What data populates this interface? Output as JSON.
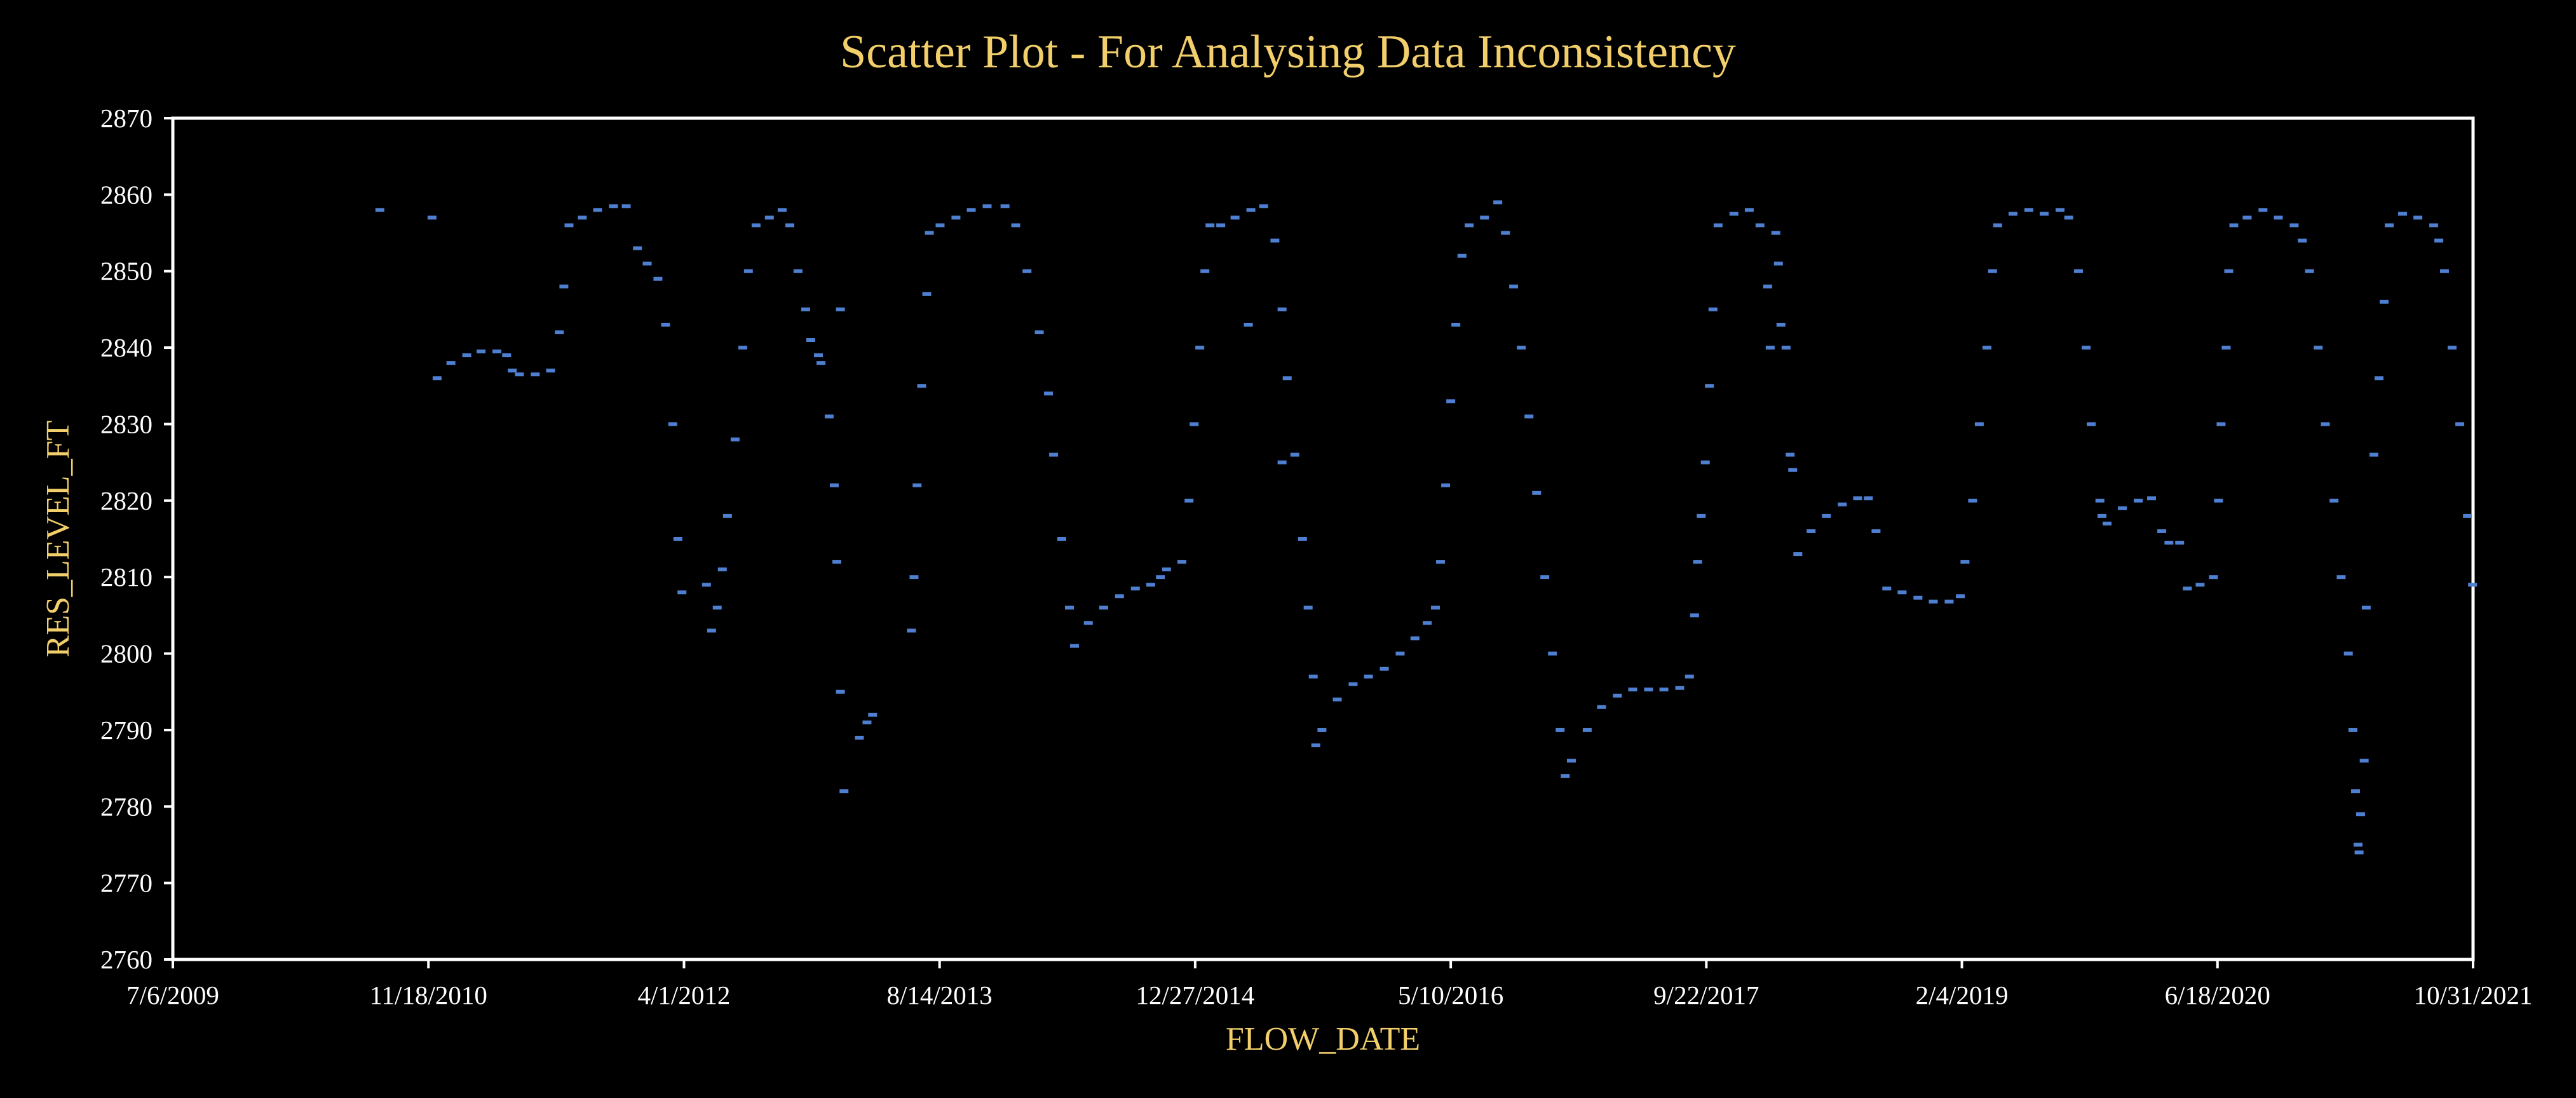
{
  "colors": {
    "background": "#000000",
    "title": "#f2cf6b",
    "axis_label": "#f2cf6b",
    "tick_text": "#ffffff",
    "plot_border": "#ffffff",
    "points": "#4f7fd0"
  },
  "chart_data": {
    "type": "scatter",
    "title": "Scatter Plot - For Analysing Data Inconsistency",
    "xlabel": "FLOW_DATE",
    "ylabel": "RES_LEVEL_FT",
    "xlim": [
      "2009-07-06",
      "2021-10-31"
    ],
    "ylim": [
      2760,
      2870
    ],
    "x_ticks": [
      "7/6/2009",
      "11/18/2010",
      "4/1/2012",
      "8/14/2013",
      "12/27/2014",
      "5/10/2016",
      "9/22/2017",
      "2/4/2019",
      "6/18/2020",
      "10/31/2021"
    ],
    "x_tick_dates": [
      "2009-07-06",
      "2010-11-18",
      "2012-04-01",
      "2013-08-14",
      "2014-12-27",
      "2016-05-10",
      "2017-09-22",
      "2019-02-04",
      "2020-06-18",
      "2021-10-31"
    ],
    "y_ticks": [
      2760,
      2770,
      2780,
      2790,
      2800,
      2810,
      2820,
      2830,
      2840,
      2850,
      2860,
      2870
    ],
    "grid": false,
    "legend": "none",
    "points": [
      [
        "2010-08-15",
        2858
      ],
      [
        "2010-11-25",
        2857
      ],
      [
        "2010-12-05",
        2836
      ],
      [
        "2011-01-01",
        2838
      ],
      [
        "2011-02-01",
        2839
      ],
      [
        "2011-03-01",
        2839.5
      ],
      [
        "2011-04-01",
        2839.5
      ],
      [
        "2011-04-20",
        2839
      ],
      [
        "2011-05-01",
        2837
      ],
      [
        "2011-05-15",
        2836.5
      ],
      [
        "2011-06-15",
        2836.5
      ],
      [
        "2011-07-15",
        2837
      ],
      [
        "2011-08-01",
        2842
      ],
      [
        "2011-08-10",
        2848
      ],
      [
        "2011-08-20",
        2856
      ],
      [
        "2011-09-15",
        2857
      ],
      [
        "2011-10-15",
        2858
      ],
      [
        "2011-11-15",
        2858.5
      ],
      [
        "2011-12-10",
        2858.5
      ],
      [
        "2012-01-01",
        2853
      ],
      [
        "2012-01-20",
        2851
      ],
      [
        "2012-02-10",
        2849
      ],
      [
        "2012-02-25",
        2843
      ],
      [
        "2012-03-10",
        2830
      ],
      [
        "2012-03-20",
        2815
      ],
      [
        "2012-03-28",
        2808
      ],
      [
        "2012-05-15",
        2809
      ],
      [
        "2012-05-25",
        2803
      ],
      [
        "2012-06-05",
        2806
      ],
      [
        "2012-06-15",
        2811
      ],
      [
        "2012-06-25",
        2818
      ],
      [
        "2012-07-10",
        2828
      ],
      [
        "2012-07-25",
        2840
      ],
      [
        "2012-08-05",
        2850
      ],
      [
        "2012-08-20",
        2856
      ],
      [
        "2012-09-15",
        2857
      ],
      [
        "2012-10-10",
        2858
      ],
      [
        "2012-10-25",
        2856
      ],
      [
        "2012-11-10",
        2850
      ],
      [
        "2012-11-25",
        2845
      ],
      [
        "2012-12-05",
        2841
      ],
      [
        "2012-12-20",
        2839
      ],
      [
        "2012-12-25",
        2838
      ],
      [
        "2013-01-10",
        2831
      ],
      [
        "2013-01-20",
        2822
      ],
      [
        "2013-01-25",
        2812
      ],
      [
        "2013-02-01",
        2795
      ],
      [
        "2013-02-08",
        2782
      ],
      [
        "2013-02-01",
        2845
      ],
      [
        "2013-03-10",
        2789
      ],
      [
        "2013-03-25",
        2791
      ],
      [
        "2013-04-05",
        2792
      ],
      [
        "2013-06-20",
        2803
      ],
      [
        "2013-06-25",
        2810
      ],
      [
        "2013-07-01",
        2822
      ],
      [
        "2013-07-10",
        2835
      ],
      [
        "2013-07-20",
        2847
      ],
      [
        "2013-07-25",
        2855
      ],
      [
        "2013-08-15",
        2856
      ],
      [
        "2013-09-15",
        2857
      ],
      [
        "2013-10-15",
        2858
      ],
      [
        "2013-11-15",
        2858.5
      ],
      [
        "2013-12-20",
        2858.5
      ],
      [
        "2014-01-10",
        2856
      ],
      [
        "2014-02-01",
        2850
      ],
      [
        "2014-02-25",
        2842
      ],
      [
        "2014-03-15",
        2834
      ],
      [
        "2014-03-25",
        2826
      ],
      [
        "2014-04-10",
        2815
      ],
      [
        "2014-04-25",
        2806
      ],
      [
        "2014-05-05",
        2801
      ],
      [
        "2014-06-01",
        2804
      ],
      [
        "2014-07-01",
        2806
      ],
      [
        "2014-08-01",
        2807.5
      ],
      [
        "2014-09-01",
        2808.5
      ],
      [
        "2014-10-01",
        2809
      ],
      [
        "2014-10-20",
        2810
      ],
      [
        "2014-11-01",
        2811
      ],
      [
        "2014-12-01",
        2812
      ],
      [
        "2014-12-15",
        2820
      ],
      [
        "2014-12-25",
        2830
      ],
      [
        "2015-01-05",
        2840
      ],
      [
        "2015-01-15",
        2850
      ],
      [
        "2015-01-25",
        2856
      ],
      [
        "2015-02-15",
        2856
      ],
      [
        "2015-03-15",
        2857
      ],
      [
        "2015-04-15",
        2858
      ],
      [
        "2015-05-10",
        2858.5
      ],
      [
        "2015-04-10",
        2843
      ],
      [
        "2015-06-01",
        2854
      ],
      [
        "2015-06-15",
        2845
      ],
      [
        "2015-06-25",
        2836
      ],
      [
        "2015-07-10",
        2826
      ],
      [
        "2015-07-25",
        2815
      ],
      [
        "2015-08-05",
        2806
      ],
      [
        "2015-08-15",
        2797
      ],
      [
        "2015-08-20",
        2788
      ],
      [
        "2015-06-15",
        2825
      ],
      [
        "2015-09-01",
        2790
      ],
      [
        "2015-10-01",
        2794
      ],
      [
        "2015-11-01",
        2796
      ],
      [
        "2015-12-01",
        2797
      ],
      [
        "2016-01-01",
        2798
      ],
      [
        "2016-02-01",
        2800
      ],
      [
        "2016-03-01",
        2802
      ],
      [
        "2016-03-25",
        2804
      ],
      [
        "2016-04-10",
        2806
      ],
      [
        "2016-04-20",
        2812
      ],
      [
        "2016-04-30",
        2822
      ],
      [
        "2016-05-10",
        2833
      ],
      [
        "2016-05-20",
        2843
      ],
      [
        "2016-06-01",
        2852
      ],
      [
        "2016-06-15",
        2856
      ],
      [
        "2016-07-15",
        2857
      ],
      [
        "2016-08-10",
        2859
      ],
      [
        "2016-08-25",
        2855
      ],
      [
        "2016-09-10",
        2848
      ],
      [
        "2016-09-25",
        2840
      ],
      [
        "2016-10-10",
        2831
      ],
      [
        "2016-10-25",
        2821
      ],
      [
        "2016-11-10",
        2810
      ],
      [
        "2016-11-25",
        2800
      ],
      [
        "2016-12-10",
        2790
      ],
      [
        "2016-12-20",
        2784
      ],
      [
        "2017-01-01",
        2786
      ],
      [
        "2017-02-01",
        2790
      ],
      [
        "2017-03-01",
        2793
      ],
      [
        "2017-04-01",
        2794.5
      ],
      [
        "2017-05-01",
        2795.3
      ],
      [
        "2017-06-01",
        2795.3
      ],
      [
        "2017-07-01",
        2795.3
      ],
      [
        "2017-08-01",
        2795.5
      ],
      [
        "2017-08-20",
        2797
      ],
      [
        "2017-08-30",
        2805
      ],
      [
        "2017-09-05",
        2812
      ],
      [
        "2017-09-12",
        2818
      ],
      [
        "2017-09-20",
        2825
      ],
      [
        "2017-09-28",
        2835
      ],
      [
        "2017-10-05",
        2845
      ],
      [
        "2017-10-15",
        2856
      ],
      [
        "2017-11-15",
        2857.5
      ],
      [
        "2017-12-15",
        2858
      ],
      [
        "2018-01-05",
        2856
      ],
      [
        "2018-01-20",
        2848
      ],
      [
        "2018-01-25",
        2840
      ],
      [
        "2018-02-05",
        2855
      ],
      [
        "2018-02-10",
        2851
      ],
      [
        "2018-02-15",
        2843
      ],
      [
        "2018-02-25",
        2840
      ],
      [
        "2018-03-05",
        2826
      ],
      [
        "2018-03-10",
        2824
      ],
      [
        "2018-03-20",
        2813
      ],
      [
        "2018-04-15",
        2816
      ],
      [
        "2018-05-15",
        2818
      ],
      [
        "2018-06-15",
        2819.5
      ],
      [
        "2018-07-15",
        2820.3
      ],
      [
        "2018-08-05",
        2820.3
      ],
      [
        "2018-08-20",
        2816
      ],
      [
        "2018-09-10",
        2808.5
      ],
      [
        "2018-10-10",
        2808
      ],
      [
        "2018-11-10",
        2807.3
      ],
      [
        "2018-12-10",
        2806.8
      ],
      [
        "2019-01-10",
        2806.8
      ],
      [
        "2019-02-01",
        2807.5
      ],
      [
        "2019-02-10",
        2812
      ],
      [
        "2019-02-25",
        2820
      ],
      [
        "2019-03-10",
        2830
      ],
      [
        "2019-03-25",
        2840
      ],
      [
        "2019-04-05",
        2850
      ],
      [
        "2019-04-15",
        2856
      ],
      [
        "2019-05-15",
        2857.5
      ],
      [
        "2019-06-15",
        2858
      ],
      [
        "2019-07-15",
        2857.5
      ],
      [
        "2019-08-15",
        2858
      ],
      [
        "2019-09-01",
        2857
      ],
      [
        "2019-09-20",
        2850
      ],
      [
        "2019-10-05",
        2840
      ],
      [
        "2019-10-15",
        2830
      ],
      [
        "2019-11-01",
        2820
      ],
      [
        "2019-11-05",
        2818
      ],
      [
        "2019-11-15",
        2817
      ],
      [
        "2019-12-15",
        2819
      ],
      [
        "2020-01-15",
        2820
      ],
      [
        "2020-02-10",
        2820.3
      ],
      [
        "2020-03-01",
        2816
      ],
      [
        "2020-03-15",
        2814.5
      ],
      [
        "2020-04-05",
        2814.5
      ],
      [
        "2020-04-20",
        2808.5
      ],
      [
        "2020-05-15",
        2809
      ],
      [
        "2020-06-10",
        2810
      ],
      [
        "2020-06-20",
        2820
      ],
      [
        "2020-06-25",
        2830
      ],
      [
        "2020-07-05",
        2840
      ],
      [
        "2020-07-10",
        2850
      ],
      [
        "2020-07-20",
        2856
      ],
      [
        "2020-08-15",
        2857
      ],
      [
        "2020-09-15",
        2858
      ],
      [
        "2020-10-15",
        2857
      ],
      [
        "2020-11-15",
        2856
      ],
      [
        "2020-12-01",
        2854
      ],
      [
        "2020-12-15",
        2850
      ],
      [
        "2021-01-01",
        2840
      ],
      [
        "2021-01-15",
        2830
      ],
      [
        "2021-02-01",
        2820
      ],
      [
        "2021-02-15",
        2810
      ],
      [
        "2021-03-01",
        2800
      ],
      [
        "2021-03-10",
        2790
      ],
      [
        "2021-03-15",
        2782
      ],
      [
        "2021-03-20",
        2775
      ],
      [
        "2021-03-22",
        2774
      ],
      [
        "2021-03-25",
        2779
      ],
      [
        "2021-04-01",
        2786
      ],
      [
        "2021-04-05",
        2806
      ],
      [
        "2021-04-20",
        2826
      ],
      [
        "2021-04-30",
        2836
      ],
      [
        "2021-05-10",
        2846
      ],
      [
        "2021-05-20",
        2856
      ],
      [
        "2021-06-15",
        2857.5
      ],
      [
        "2021-07-15",
        2857
      ],
      [
        "2021-08-15",
        2856
      ],
      [
        "2021-08-25",
        2854
      ],
      [
        "2021-09-05",
        2850
      ],
      [
        "2021-09-20",
        2840
      ],
      [
        "2021-10-05",
        2830
      ],
      [
        "2021-10-20",
        2818
      ],
      [
        "2021-10-30",
        2809
      ]
    ]
  }
}
